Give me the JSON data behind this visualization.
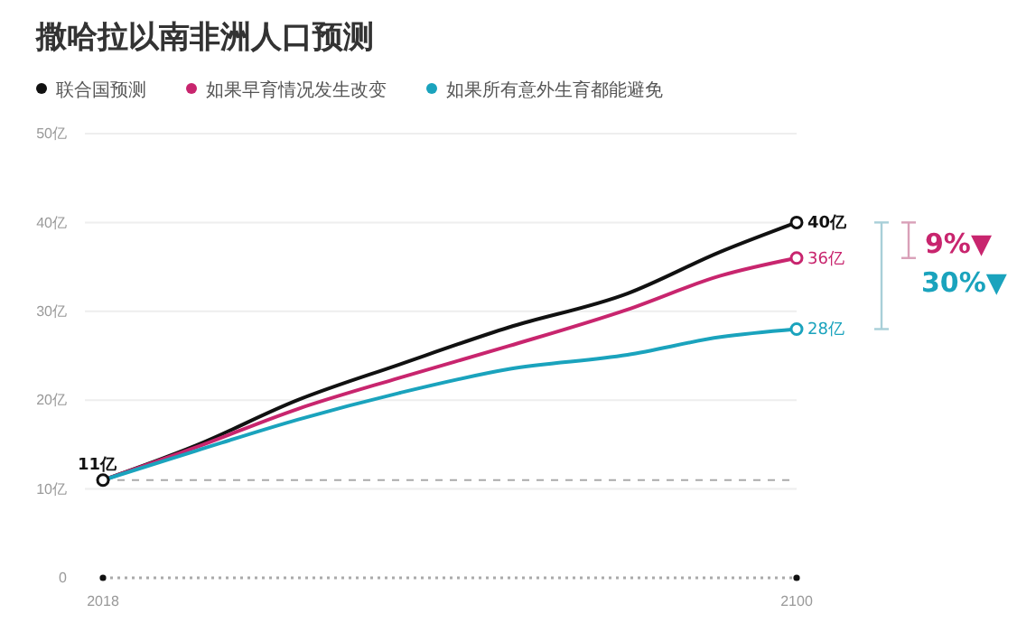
{
  "chart_data": {
    "type": "line",
    "title": "撒哈拉以南非洲人口预测",
    "x": [
      2018,
      2029,
      2041,
      2053,
      2066,
      2080,
      2091,
      2100
    ],
    "series": [
      {
        "name": "联合国预测",
        "color": "#111111",
        "values": [
          11,
          14.9,
          20,
          24,
          28.2,
          32,
          36.7,
          40
        ],
        "value_labels": [
          "11亿",
          null,
          null,
          null,
          null,
          null,
          null,
          "40亿"
        ]
      },
      {
        "name": "如果早育情况发生改变",
        "color": "#c8256e",
        "values": [
          11,
          14.7,
          19,
          22.5,
          26.1,
          30.2,
          34,
          36
        ],
        "value_labels": [
          null,
          null,
          null,
          null,
          null,
          null,
          null,
          "36亿"
        ]
      },
      {
        "name": "如果所有意外生育都能避免",
        "color": "#1aa3bd",
        "values": [
          11,
          14.3,
          17.8,
          20.8,
          23.5,
          25.1,
          27.1,
          28
        ],
        "value_labels": [
          null,
          null,
          null,
          null,
          null,
          null,
          null,
          "28亿"
        ]
      }
    ],
    "xlim": [
      2018,
      2100
    ],
    "xticks": [
      2018,
      2100
    ],
    "ylim": [
      0,
      50
    ],
    "yticks": [
      {
        "value": 0,
        "label": "0"
      },
      {
        "value": 10,
        "label": "10亿"
      },
      {
        "value": 20,
        "label": "20亿"
      },
      {
        "value": 30,
        "label": "30亿"
      },
      {
        "value": 40,
        "label": "40亿"
      },
      {
        "value": 50,
        "label": "50亿"
      }
    ],
    "grid": "y",
    "legend": "top left",
    "ref_lines": [
      {
        "axis": "y",
        "value": 11,
        "color": "#aaaaaa",
        "line_style": "dashed"
      }
    ],
    "annotations": [
      "9%▼",
      "30%▼"
    ]
  }
}
